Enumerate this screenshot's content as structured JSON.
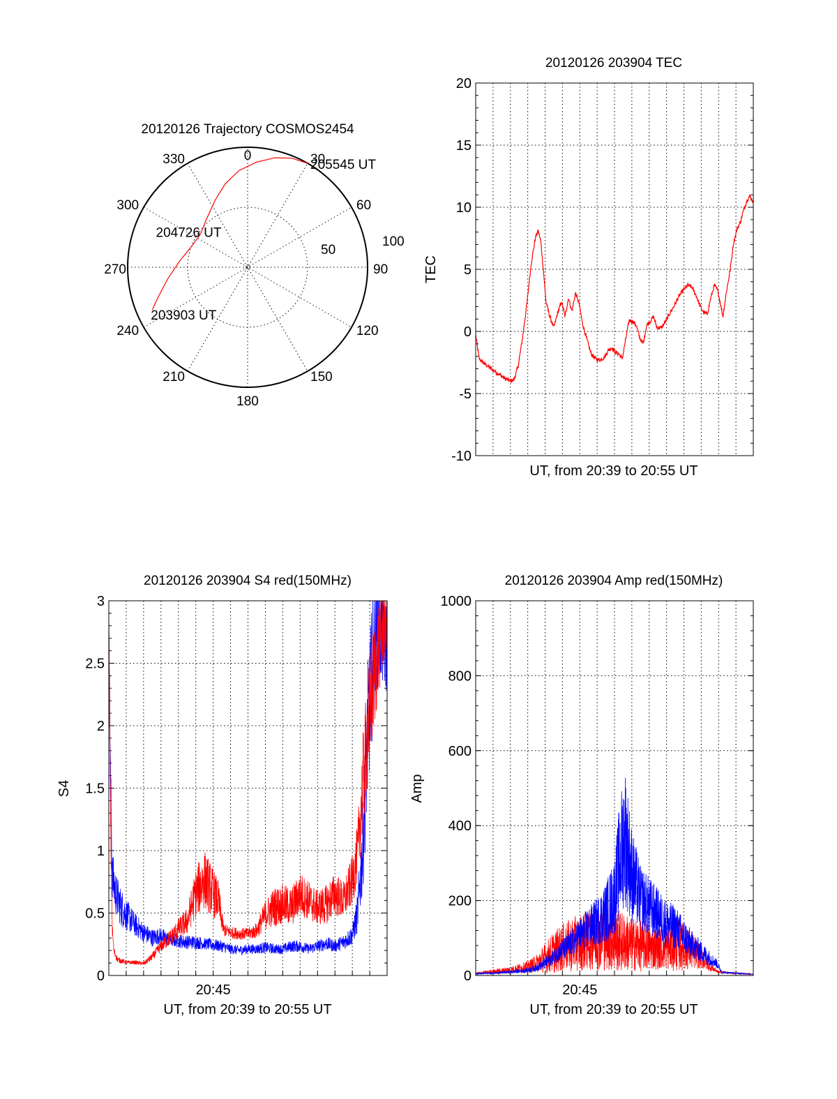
{
  "chart_data": [
    {
      "id": "trajectory",
      "type": "polar",
      "title": "20120126 Trajectory COSMOS2454",
      "angle_labels": [
        "0",
        "30",
        "60",
        "90",
        "120",
        "150",
        "180",
        "210",
        "240",
        "270",
        "300",
        "330"
      ],
      "radius_labels": [
        "50",
        "100"
      ],
      "rlim": [
        0,
        100
      ],
      "grid": true,
      "colors": {
        "track": "#ff0000"
      },
      "track": [
        {
          "azimuth": 246,
          "radius": 87
        },
        {
          "azimuth": 252,
          "radius": 78
        },
        {
          "azimuth": 262,
          "radius": 67
        },
        {
          "azimuth": 275,
          "radius": 57
        },
        {
          "azimuth": 290,
          "radius": 50
        },
        {
          "azimuth": 305,
          "radius": 48
        },
        {
          "azimuth": 320,
          "radius": 53
        },
        {
          "azimuth": 334,
          "radius": 62
        },
        {
          "azimuth": 345,
          "radius": 72
        },
        {
          "azimuth": 355,
          "radius": 81
        },
        {
          "azimuth": 5,
          "radius": 88
        },
        {
          "azimuth": 14,
          "radius": 94
        },
        {
          "azimuth": 22,
          "radius": 98
        },
        {
          "azimuth": 30,
          "radius": 100
        }
      ],
      "annotations": [
        {
          "text": "203903 UT",
          "azimuth": 246,
          "radius": 87
        },
        {
          "text": "204726 UT",
          "azimuth": 300,
          "radius": 48
        },
        {
          "text": "205545 UT",
          "azimuth": 30,
          "radius": 100
        }
      ]
    },
    {
      "id": "tec",
      "type": "line",
      "title": "20120126 203904 TEC",
      "xlabel": "UT, from 20:39 to 20:55 UT",
      "ylabel": "TEC",
      "xlim": [
        0,
        16
      ],
      "ylim": [
        -10,
        20
      ],
      "yticks": [
        -10,
        -5,
        0,
        5,
        10,
        15,
        20
      ],
      "ytick_labels": [
        "-10",
        "-5",
        "0",
        "5",
        "10",
        "15",
        "20"
      ],
      "xgrid_minutes": [
        1,
        2,
        3,
        4,
        5,
        6,
        7,
        8,
        9,
        10,
        11,
        12,
        13,
        14,
        15
      ],
      "grid": true,
      "series": [
        {
          "color": "#ff0000",
          "x": [
            0,
            0.2,
            0.5,
            0.9,
            1.3,
            1.7,
            2.0,
            2.2,
            2.45,
            2.7,
            2.95,
            3.2,
            3.45,
            3.6,
            3.75,
            3.9,
            4.05,
            4.25,
            4.5,
            4.75,
            4.95,
            5.15,
            5.35,
            5.55,
            5.75,
            5.95,
            6.15,
            6.4,
            6.65,
            6.9,
            7.15,
            7.4,
            7.65,
            7.85,
            8.05,
            8.25,
            8.45,
            8.65,
            8.85,
            9.05,
            9.25,
            9.45,
            9.65,
            9.85,
            10.05,
            10.25,
            10.45,
            10.7,
            10.95,
            11.2,
            11.45,
            11.7,
            11.95,
            12.2,
            12.45,
            12.7,
            12.95,
            13.15,
            13.35,
            13.55,
            13.75,
            13.95,
            14.1,
            14.25,
            14.45,
            14.65,
            14.85,
            15.05,
            15.25,
            15.45,
            15.65,
            15.8,
            16.0
          ],
          "y": [
            -0.3,
            -2.2,
            -2.6,
            -3.0,
            -3.4,
            -3.8,
            -4.0,
            -3.9,
            -2.8,
            -0.5,
            2.2,
            5.5,
            7.6,
            8.1,
            7.3,
            5.0,
            2.4,
            1.3,
            0.3,
            1.6,
            2.4,
            1.2,
            2.7,
            1.6,
            3.1,
            2.3,
            0.7,
            -0.6,
            -1.8,
            -2.2,
            -2.3,
            -2.1,
            -1.5,
            -1.3,
            -1.7,
            -1.8,
            -2.2,
            -0.6,
            0.9,
            0.8,
            0.5,
            -0.5,
            -1.0,
            0.5,
            0.8,
            1.2,
            0.3,
            0.3,
            0.8,
            1.5,
            2.1,
            2.8,
            3.3,
            3.7,
            3.6,
            2.9,
            2.0,
            1.5,
            1.4,
            2.7,
            3.7,
            3.3,
            2.3,
            1.2,
            3.2,
            4.8,
            7.0,
            8.2,
            8.8,
            9.8,
            10.6,
            10.9,
            10.4
          ]
        }
      ]
    },
    {
      "id": "s4",
      "type": "line",
      "title": "20120126 203904 S4 red(150MHz)",
      "xlabel": "UT, from 20:39 to 20:55 UT",
      "ylabel": "S4",
      "xlim": [
        0,
        16
      ],
      "ylim": [
        0,
        3
      ],
      "yticks": [
        0,
        0.5,
        1,
        1.5,
        2,
        2.5,
        3
      ],
      "ytick_labels": [
        "0",
        "0.5",
        "1",
        "1.5",
        "2",
        "2.5",
        "3"
      ],
      "xtick_labels": [
        {
          "minute": 6,
          "label": "20:45"
        }
      ],
      "xgrid_minutes": [
        1,
        2,
        3,
        4,
        5,
        6,
        7,
        8,
        9,
        10,
        11,
        12,
        13,
        14,
        15
      ],
      "grid": true,
      "series": [
        {
          "color": "#0000ff",
          "x": [
            0,
            0.1,
            0.2,
            0.4,
            0.7,
            1.0,
            1.5,
            2.0,
            2.5,
            3.0,
            3.5,
            4.0,
            4.5,
            5.0,
            5.5,
            6.0,
            6.5,
            7.0,
            7.5,
            8.0,
            8.5,
            9.0,
            9.5,
            10.0,
            10.5,
            11.0,
            11.5,
            12.0,
            12.5,
            13.0,
            13.5,
            14.0,
            14.3,
            14.6,
            14.9,
            15.2,
            15.5,
            16.0
          ],
          "y": [
            2.9,
            1.5,
            0.75,
            0.6,
            0.5,
            0.45,
            0.38,
            0.32,
            0.28,
            0.3,
            0.27,
            0.26,
            0.25,
            0.25,
            0.24,
            0.23,
            0.22,
            0.2,
            0.19,
            0.2,
            0.2,
            0.21,
            0.2,
            0.2,
            0.22,
            0.22,
            0.2,
            0.22,
            0.24,
            0.22,
            0.25,
            0.3,
            0.45,
            0.9,
            1.8,
            2.4,
            2.7,
            2.5
          ],
          "noise": [
            0.02,
            0.3,
            0.25,
            0.22,
            0.2,
            0.16,
            0.12,
            0.1,
            0.09,
            0.08,
            0.07,
            0.07,
            0.07,
            0.07,
            0.06,
            0.06,
            0.06,
            0.05,
            0.05,
            0.05,
            0.05,
            0.06,
            0.05,
            0.05,
            0.06,
            0.06,
            0.05,
            0.06,
            0.07,
            0.06,
            0.08,
            0.1,
            0.2,
            0.45,
            0.7,
            0.7,
            0.6,
            0.5
          ]
        },
        {
          "color": "#ff0000",
          "x": [
            0,
            0.1,
            0.2,
            0.3,
            0.5,
            1.0,
            1.5,
            2.0,
            2.5,
            3.0,
            3.5,
            4.0,
            4.5,
            5.0,
            5.5,
            6.0,
            6.3,
            6.6,
            7.0,
            7.5,
            8.0,
            8.5,
            9.0,
            9.5,
            10.0,
            10.5,
            11.0,
            11.5,
            12.0,
            12.5,
            13.0,
            13.5,
            14.0,
            14.3,
            14.6,
            15.0,
            15.5,
            16.0
          ],
          "y": [
            2.8,
            1.2,
            0.35,
            0.18,
            0.12,
            0.1,
            0.1,
            0.09,
            0.14,
            0.22,
            0.28,
            0.35,
            0.4,
            0.6,
            0.7,
            0.6,
            0.55,
            0.35,
            0.33,
            0.32,
            0.32,
            0.34,
            0.45,
            0.5,
            0.52,
            0.5,
            0.6,
            0.55,
            0.5,
            0.52,
            0.6,
            0.55,
            0.7,
            0.9,
            1.4,
            2.0,
            2.5,
            2.8
          ],
          "noise": [
            0.02,
            0.2,
            0.08,
            0.04,
            0.03,
            0.02,
            0.02,
            0.02,
            0.04,
            0.06,
            0.08,
            0.1,
            0.14,
            0.25,
            0.3,
            0.25,
            0.2,
            0.07,
            0.06,
            0.06,
            0.06,
            0.08,
            0.15,
            0.2,
            0.2,
            0.2,
            0.22,
            0.2,
            0.18,
            0.2,
            0.22,
            0.2,
            0.25,
            0.3,
            0.5,
            0.6,
            0.5,
            0.3
          ]
        }
      ]
    },
    {
      "id": "amp",
      "type": "line",
      "title": "20120126 203904 Amp red(150MHz)",
      "xlabel": "UT, from 20:39 to 20:55 UT",
      "ylabel": "Amp",
      "xlim": [
        0,
        16
      ],
      "ylim": [
        0,
        1000
      ],
      "yticks": [
        0,
        200,
        400,
        600,
        800,
        1000
      ],
      "ytick_labels": [
        "0",
        "200",
        "400",
        "600",
        "800",
        "1000"
      ],
      "xtick_labels": [
        {
          "minute": 6,
          "label": "20:45"
        }
      ],
      "xgrid_minutes": [
        1,
        2,
        3,
        4,
        5,
        6,
        7,
        8,
        9,
        10,
        11,
        12,
        13,
        14,
        15
      ],
      "grid": true,
      "series": [
        {
          "color": "#ff0000",
          "x": [
            0,
            1.0,
            2.0,
            3.0,
            3.5,
            4.0,
            4.5,
            5.0,
            5.5,
            6.0,
            6.5,
            7.0,
            7.5,
            8.0,
            8.5,
            9.0,
            9.5,
            10.0,
            10.5,
            11.0,
            11.5,
            12.0,
            12.5,
            13.0,
            13.5,
            14.0,
            16.0
          ],
          "y": [
            5,
            8,
            12,
            18,
            25,
            35,
            45,
            55,
            60,
            65,
            70,
            75,
            80,
            70,
            65,
            62,
            60,
            58,
            55,
            55,
            60,
            58,
            50,
            40,
            20,
            8,
            3
          ],
          "noise": [
            3,
            8,
            12,
            20,
            30,
            50,
            70,
            80,
            90,
            95,
            100,
            110,
            120,
            110,
            100,
            90,
            90,
            80,
            70,
            70,
            90,
            80,
            60,
            40,
            15,
            4,
            1
          ]
        },
        {
          "color": "#0000ff",
          "x": [
            0,
            2.0,
            3.0,
            3.5,
            4.0,
            4.5,
            5.0,
            5.5,
            6.0,
            6.5,
            7.0,
            7.5,
            8.0,
            8.3,
            8.6,
            9.0,
            9.5,
            10.0,
            10.5,
            11.0,
            11.5,
            12.0,
            12.5,
            13.0,
            13.5,
            13.9,
            14.2,
            16.0
          ],
          "y": [
            4,
            8,
            12,
            18,
            28,
            45,
            60,
            75,
            95,
            110,
            125,
            145,
            180,
            260,
            320,
            230,
            180,
            160,
            140,
            120,
            110,
            90,
            70,
            55,
            40,
            28,
            8,
            3
          ],
          "noise": [
            2,
            5,
            8,
            12,
            18,
            25,
            35,
            45,
            55,
            70,
            80,
            100,
            130,
            200,
            240,
            160,
            110,
            100,
            90,
            80,
            75,
            60,
            45,
            35,
            25,
            15,
            3,
            1
          ]
        }
      ]
    }
  ]
}
